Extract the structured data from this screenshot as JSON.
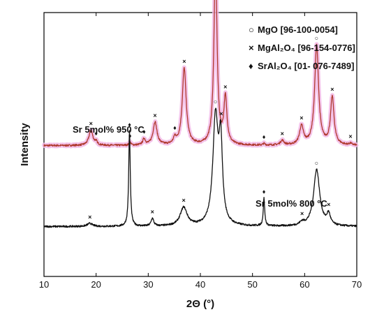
{
  "chart_data": {
    "type": "line",
    "title": "",
    "xlabel": "2Θ (°)",
    "ylabel": "Intensity",
    "xlim": [
      10,
      70
    ],
    "x_ticks": [
      "10",
      "20",
      "30",
      "40",
      "50",
      "60",
      "70"
    ],
    "y_ticks_shown": false,
    "grid": false,
    "legend_position": "top-right",
    "legend": [
      {
        "symbol": "○",
        "label": "MgO [96-100-0054]"
      },
      {
        "symbol": "×",
        "label": "MgAl₂O₄ [96-154-0776]"
      },
      {
        "symbol": "♦",
        "label": "SrAl₂O₄ [01- 076-7489]"
      }
    ],
    "series": [
      {
        "name": "Sr 5mol% 950 °C",
        "color": "#b03a2e",
        "glow": "#f2b8e6",
        "offset": 1.0,
        "baseline": 0.12,
        "peaks": [
          {
            "x": 19.0,
            "h": 0.1,
            "w": 0.45
          },
          {
            "x": 20.0,
            "h": 0.02,
            "w": 0.25
          },
          {
            "x": 26.5,
            "h": 0.02,
            "w": 0.2
          },
          {
            "x": 29.2,
            "h": 0.04,
            "w": 0.3
          },
          {
            "x": 31.3,
            "h": 0.15,
            "w": 0.45
          },
          {
            "x": 35.1,
            "h": 0.04,
            "w": 0.3
          },
          {
            "x": 36.9,
            "h": 0.5,
            "w": 0.45
          },
          {
            "x": 42.9,
            "h": 1.2,
            "w": 0.35
          },
          {
            "x": 44.8,
            "h": 0.3,
            "w": 0.35
          },
          {
            "x": 52.2,
            "h": 0.01,
            "w": 0.2
          },
          {
            "x": 55.7,
            "h": 0.03,
            "w": 0.4
          },
          {
            "x": 59.4,
            "h": 0.12,
            "w": 0.45
          },
          {
            "x": 62.3,
            "h": 0.65,
            "w": 0.45
          },
          {
            "x": 65.3,
            "h": 0.31,
            "w": 0.4
          },
          {
            "x": 68.8,
            "h": 0.01,
            "w": 0.3
          }
        ],
        "markers": [
          {
            "x": 19.0,
            "symbol": "×"
          },
          {
            "x": 20.0,
            "symbol": "♦"
          },
          {
            "x": 26.5,
            "symbol": "♦"
          },
          {
            "x": 29.2,
            "symbol": "♦"
          },
          {
            "x": 31.3,
            "symbol": "×"
          },
          {
            "x": 35.1,
            "symbol": "♦"
          },
          {
            "x": 36.9,
            "symbol": "×"
          },
          {
            "x": 42.9,
            "symbol": "○"
          },
          {
            "x": 44.8,
            "symbol": "×"
          },
          {
            "x": 52.2,
            "symbol": "♦"
          },
          {
            "x": 55.7,
            "symbol": "×"
          },
          {
            "x": 59.4,
            "symbol": "×"
          },
          {
            "x": 62.3,
            "symbol": "○"
          },
          {
            "x": 65.3,
            "symbol": "×"
          },
          {
            "x": 68.8,
            "symbol": "×"
          }
        ]
      },
      {
        "name": "Sr 5mol% 800 °C",
        "color": "#111111",
        "glow": "",
        "offset": 0.0,
        "baseline": 0.12,
        "peaks": [
          {
            "x": 18.8,
            "h": 0.02,
            "w": 0.6
          },
          {
            "x": 26.4,
            "h": 0.62,
            "w": 0.18
          },
          {
            "x": 30.8,
            "h": 0.05,
            "w": 0.3
          },
          {
            "x": 36.8,
            "h": 0.12,
            "w": 0.8
          },
          {
            "x": 42.9,
            "h": 0.7,
            "w": 0.6
          },
          {
            "x": 43.9,
            "h": 0.5,
            "w": 0.4
          },
          {
            "x": 52.2,
            "h": 0.18,
            "w": 0.17
          },
          {
            "x": 59.5,
            "h": 0.02,
            "w": 0.5
          },
          {
            "x": 62.3,
            "h": 0.37,
            "w": 0.7
          },
          {
            "x": 64.6,
            "h": 0.07,
            "w": 0.4
          }
        ],
        "markers": [
          {
            "x": 18.8,
            "symbol": "×"
          },
          {
            "x": 26.4,
            "symbol": "♦"
          },
          {
            "x": 30.8,
            "symbol": "×"
          },
          {
            "x": 36.8,
            "symbol": "×"
          },
          {
            "x": 42.9,
            "symbol": "○"
          },
          {
            "x": 44.0,
            "symbol": "×"
          },
          {
            "x": 52.2,
            "symbol": "♦"
          },
          {
            "x": 59.5,
            "symbol": "×"
          },
          {
            "x": 62.3,
            "symbol": "○"
          },
          {
            "x": 64.6,
            "symbol": "×"
          }
        ]
      }
    ]
  }
}
